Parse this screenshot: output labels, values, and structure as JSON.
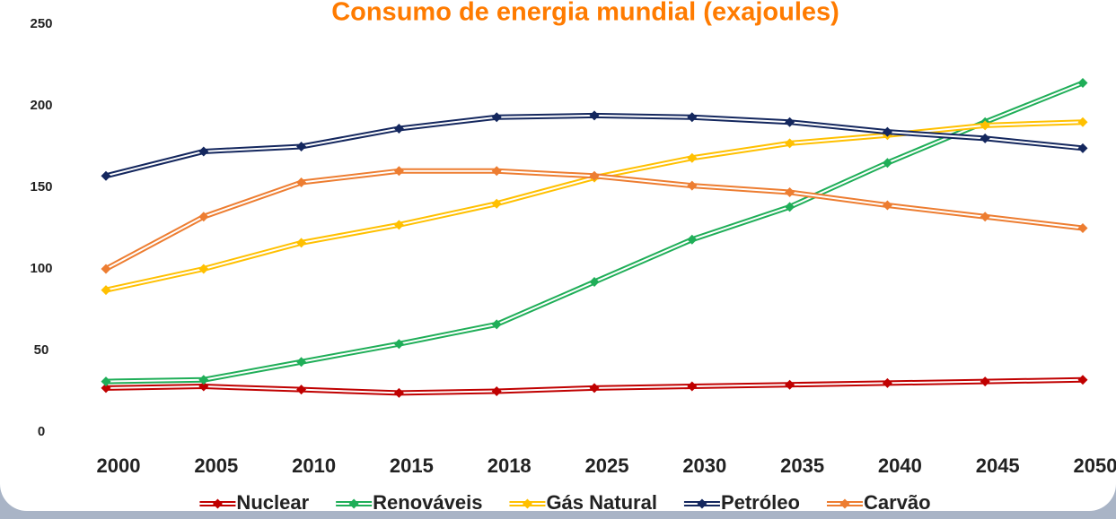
{
  "chart_data": {
    "type": "line",
    "title": "Consumo de energia mundial (exajoules)",
    "categories": [
      "2000",
      "2005",
      "2010",
      "2015",
      "2018",
      "2025",
      "2030",
      "2035",
      "2040",
      "2045",
      "2050"
    ],
    "series": [
      {
        "name": "Nuclear",
        "color": "#c00000",
        "values": [
          27,
          28,
          26,
          24,
          25,
          27,
          28,
          29,
          30,
          31,
          32
        ]
      },
      {
        "name": "Renováveis",
        "color": "#1fae58",
        "values": [
          31,
          32,
          43,
          54,
          66,
          92,
          118,
          138,
          165,
          190,
          214
        ]
      },
      {
        "name": "Gás Natural",
        "color": "#ffc000",
        "values": [
          87,
          100,
          116,
          127,
          140,
          156,
          168,
          177,
          182,
          188,
          190
        ]
      },
      {
        "name": "Petróleo",
        "color": "#14275e",
        "values": [
          157,
          172,
          175,
          186,
          193,
          194,
          193,
          190,
          184,
          180,
          174
        ]
      },
      {
        "name": "Carvão",
        "color": "#ed7d31",
        "values": [
          100,
          132,
          153,
          160,
          160,
          157,
          151,
          147,
          139,
          132,
          125
        ]
      }
    ],
    "ylim": [
      0,
      250
    ],
    "yticks": [
      0,
      50,
      100,
      150,
      200,
      250
    ],
    "grid": false,
    "legend": "bottom"
  }
}
